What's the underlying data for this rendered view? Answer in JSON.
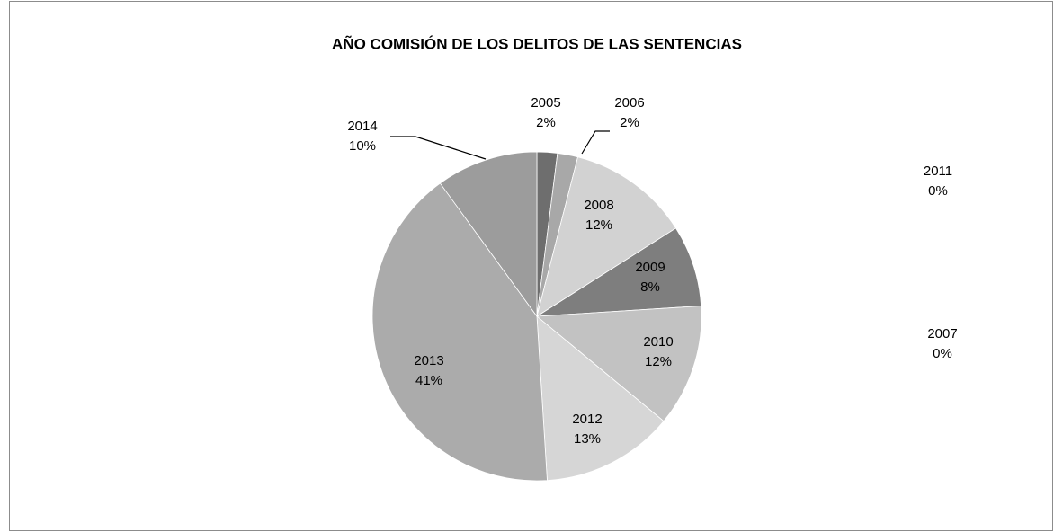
{
  "chart_data": {
    "type": "pie",
    "title": "AÑO COMISIÓN  DE LOS DELITOS DE LAS SENTENCIAS",
    "categories": [
      "2005",
      "2006",
      "2007",
      "2008",
      "2009",
      "2010",
      "2011",
      "2012",
      "2013",
      "2014"
    ],
    "values": [
      2,
      2,
      0,
      12,
      8,
      12,
      0,
      13,
      41,
      10
    ],
    "value_labels": [
      "2%",
      "2%",
      "0%",
      "12%",
      "8%",
      "12%",
      "0%",
      "13%",
      "41%",
      "10%"
    ],
    "colors": [
      "#6e6e6e",
      "#a8a8a8",
      "#bdbdbd",
      "#d2d2d2",
      "#7e7e7e",
      "#c2c2c2",
      "#9a9a9a",
      "#d6d6d6",
      "#ababab",
      "#9c9c9c"
    ]
  }
}
